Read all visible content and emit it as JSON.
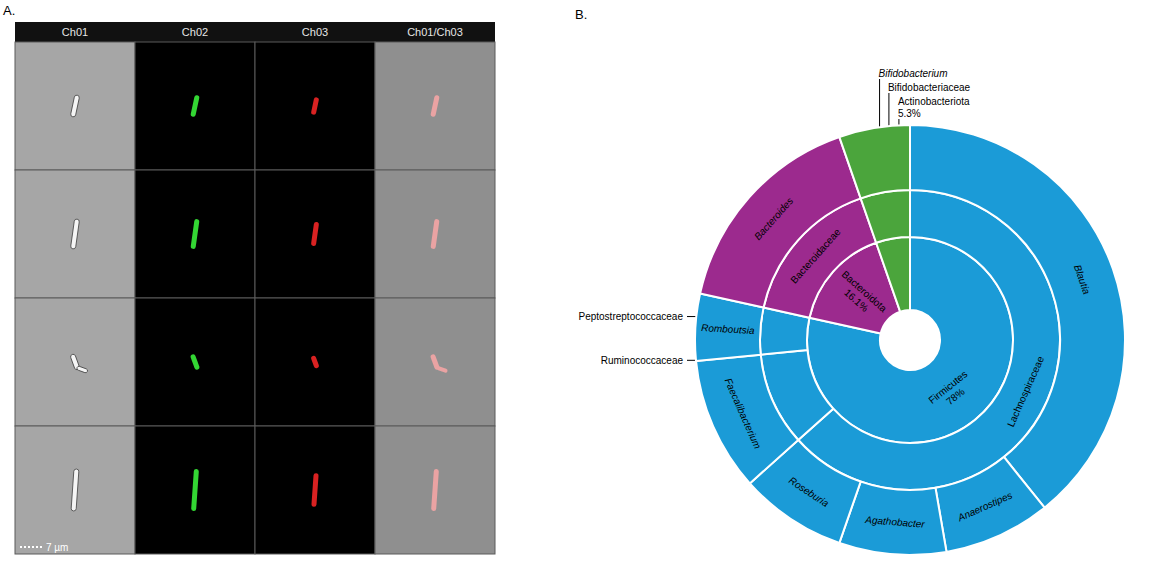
{
  "panel_a": {
    "letter": "A.",
    "columns": [
      "Ch01",
      "Ch02",
      "Ch03",
      "Ch01/Ch03"
    ],
    "scale_bar": "7 µm"
  },
  "chart_data": {
    "letter": "B.",
    "type": "sunburst",
    "nodes": [
      {
        "name": "Firmicutes",
        "value": 78,
        "value_label": "78%",
        "color": "#1b9bd7",
        "children": [
          {
            "name": "Lachnospiraceae",
            "value": 63,
            "children": [
              {
                "name": "Blautia",
                "value": 39
              },
              {
                "name": "Anaerostipes",
                "value": 8
              },
              {
                "name": "Agathobacter",
                "value": 8
              },
              {
                "name": "Roseburia",
                "value": 8
              }
            ]
          },
          {
            "name": "Ruminococcaceae",
            "value": 10,
            "children": [
              {
                "name": "Faecalibacterium",
                "value": 10
              }
            ]
          },
          {
            "name": "Peptostreptococcaceae",
            "value": 5,
            "children": [
              {
                "name": "Romboutsia",
                "value": 5
              }
            ]
          }
        ]
      },
      {
        "name": "Bacteroidota",
        "value": 16.1,
        "value_label": "16.1%",
        "color": "#9c2a8e",
        "children": [
          {
            "name": "Bacteroidaceae",
            "value": 16.1,
            "children": [
              {
                "name": "Bacteroides",
                "value": 16.1
              }
            ]
          }
        ]
      },
      {
        "name": "Actinobacteriota",
        "value": 5.3,
        "value_label": "5.3%",
        "color": "#4ba53c",
        "children": [
          {
            "name": "Bifidobacteriaceae",
            "value": 5.3,
            "children": [
              {
                "name": "Bifidobacterium",
                "value": 5.3
              }
            ]
          }
        ]
      }
    ]
  }
}
